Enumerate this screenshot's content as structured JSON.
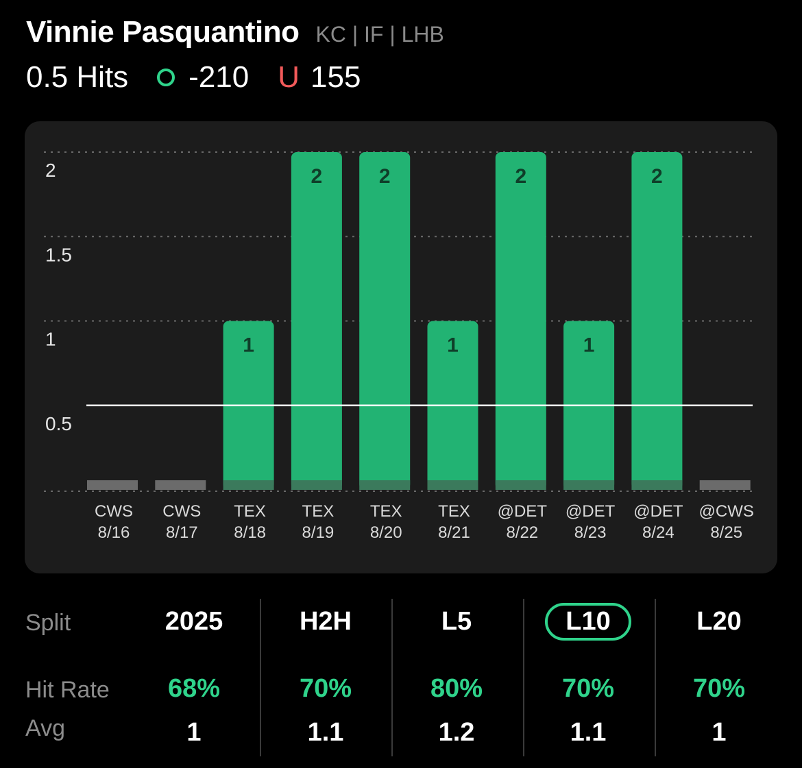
{
  "header": {
    "player_name": "Vinnie Pasquantino",
    "player_meta": "KC | IF | LHB",
    "prop_line": "0.5 Hits",
    "over_symbol": "O",
    "over_odds": "-210",
    "under_symbol": "U",
    "under_odds": "155"
  },
  "colors": {
    "accent_green": "#2fd38b",
    "bar_green": "#22b373",
    "under_red": "#f25a5a",
    "card_bg": "#1c1c1c"
  },
  "chart_data": {
    "type": "bar",
    "categories": [
      [
        "CWS",
        "8/16"
      ],
      [
        "CWS",
        "8/17"
      ],
      [
        "TEX",
        "8/18"
      ],
      [
        "TEX",
        "8/19"
      ],
      [
        "TEX",
        "8/20"
      ],
      [
        "TEX",
        "8/21"
      ],
      [
        "@DET",
        "8/22"
      ],
      [
        "@DET",
        "8/23"
      ],
      [
        "@DET",
        "8/24"
      ],
      [
        "@CWS",
        "8/25"
      ]
    ],
    "values": [
      0,
      0,
      1,
      2,
      2,
      1,
      2,
      1,
      2,
      0
    ],
    "ylim": [
      0,
      2
    ],
    "yticks": [
      "2",
      "1.5",
      "1",
      "0.5"
    ],
    "yticks_values": [
      2,
      1.5,
      1,
      0.5
    ],
    "reference_line": 0.5,
    "grid": "dotted-horizontal"
  },
  "splits": {
    "row_labels": {
      "split": "Split",
      "hit_rate": "Hit Rate",
      "avg": "Avg"
    },
    "columns": [
      {
        "label": "2025",
        "hit_rate": "68%",
        "avg": "1",
        "selected": false
      },
      {
        "label": "H2H",
        "hit_rate": "70%",
        "avg": "1.1",
        "selected": false
      },
      {
        "label": "L5",
        "hit_rate": "80%",
        "avg": "1.2",
        "selected": false
      },
      {
        "label": "L10",
        "hit_rate": "70%",
        "avg": "1.1",
        "selected": true
      },
      {
        "label": "L20",
        "hit_rate": "70%",
        "avg": "1",
        "selected": false
      }
    ]
  }
}
